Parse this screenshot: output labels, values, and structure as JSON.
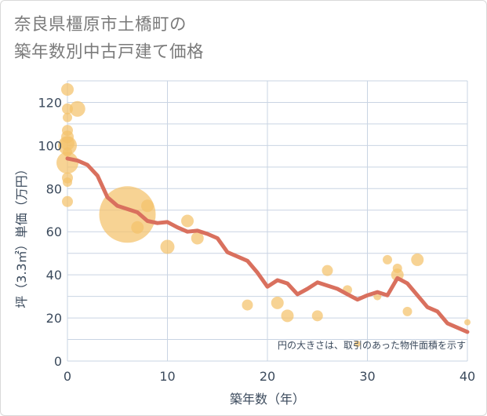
{
  "chart_data": {
    "type": "scatter",
    "title_line1": "奈良県橿原市土橋町の",
    "title_line2": "築年数別中古戸建て価格",
    "xlabel": "築年数（年）",
    "ylabel": "坪（3.3㎡）単価（万円）",
    "xlim": [
      0,
      40
    ],
    "ylim": [
      0,
      130
    ],
    "xticks": [
      0,
      10,
      20,
      30,
      40
    ],
    "yticks": [
      0,
      20,
      40,
      60,
      80,
      100,
      120
    ],
    "grid": true,
    "note": "円の大きさは、取引のあった物件面積を示す",
    "colors": {
      "bubble": "#f4c26b",
      "trend": "#d9705e",
      "grid": "#c9d4e3",
      "axis_text": "#3b4a5c",
      "title": "#7a7a7a"
    },
    "bubbles": [
      {
        "x": 0,
        "y": 126,
        "size": 8
      },
      {
        "x": 0,
        "y": 117,
        "size": 7
      },
      {
        "x": 0,
        "y": 113,
        "size": 6
      },
      {
        "x": 0,
        "y": 107,
        "size": 7
      },
      {
        "x": 0,
        "y": 104,
        "size": 8
      },
      {
        "x": 0,
        "y": 101,
        "size": 9
      },
      {
        "x": 0,
        "y": 100,
        "size": 12
      },
      {
        "x": 0,
        "y": 97,
        "size": 6
      },
      {
        "x": 0,
        "y": 92,
        "size": 14
      },
      {
        "x": 0,
        "y": 85,
        "size": 7
      },
      {
        "x": 0,
        "y": 83,
        "size": 6
      },
      {
        "x": 0,
        "y": 74,
        "size": 7
      },
      {
        "x": 1,
        "y": 117,
        "size": 10
      },
      {
        "x": 6,
        "y": 68,
        "size": 36
      },
      {
        "x": 7,
        "y": 62,
        "size": 8
      },
      {
        "x": 8,
        "y": 72,
        "size": 8
      },
      {
        "x": 10,
        "y": 53,
        "size": 9
      },
      {
        "x": 12,
        "y": 65,
        "size": 8
      },
      {
        "x": 13,
        "y": 57,
        "size": 8
      },
      {
        "x": 18,
        "y": 26,
        "size": 7
      },
      {
        "x": 21,
        "y": 27,
        "size": 8
      },
      {
        "x": 22,
        "y": 21,
        "size": 8
      },
      {
        "x": 25,
        "y": 21,
        "size": 7
      },
      {
        "x": 26,
        "y": 42,
        "size": 7
      },
      {
        "x": 28,
        "y": 33,
        "size": 6
      },
      {
        "x": 29,
        "y": 8,
        "size": 4
      },
      {
        "x": 31,
        "y": 30,
        "size": 5
      },
      {
        "x": 32,
        "y": 47,
        "size": 6
      },
      {
        "x": 33,
        "y": 43,
        "size": 6
      },
      {
        "x": 33,
        "y": 40,
        "size": 8
      },
      {
        "x": 34,
        "y": 23,
        "size": 6
      },
      {
        "x": 35,
        "y": 47,
        "size": 8
      },
      {
        "x": 40,
        "y": 18,
        "size": 4
      }
    ],
    "trend": {
      "x": [
        0,
        1,
        2,
        3,
        4,
        5,
        6,
        7,
        8,
        9,
        10,
        11,
        12,
        13,
        14,
        15,
        16,
        17,
        18,
        19,
        20,
        21,
        22,
        23,
        24,
        25,
        26,
        27,
        28,
        29,
        30,
        31,
        32,
        33,
        34,
        35,
        36,
        37,
        38,
        39,
        40
      ],
      "y": [
        94,
        93,
        91,
        86,
        76,
        72,
        70.5,
        69,
        65,
        64,
        64.5,
        62,
        60,
        60.5,
        59,
        57,
        50.5,
        48.5,
        46.5,
        41,
        34.5,
        37.5,
        36,
        31,
        33.5,
        36.5,
        35,
        33.5,
        31,
        28.5,
        30.5,
        32,
        30.5,
        38.5,
        36,
        30.5,
        25,
        23,
        17.5,
        15.5,
        13.5
      ]
    }
  }
}
